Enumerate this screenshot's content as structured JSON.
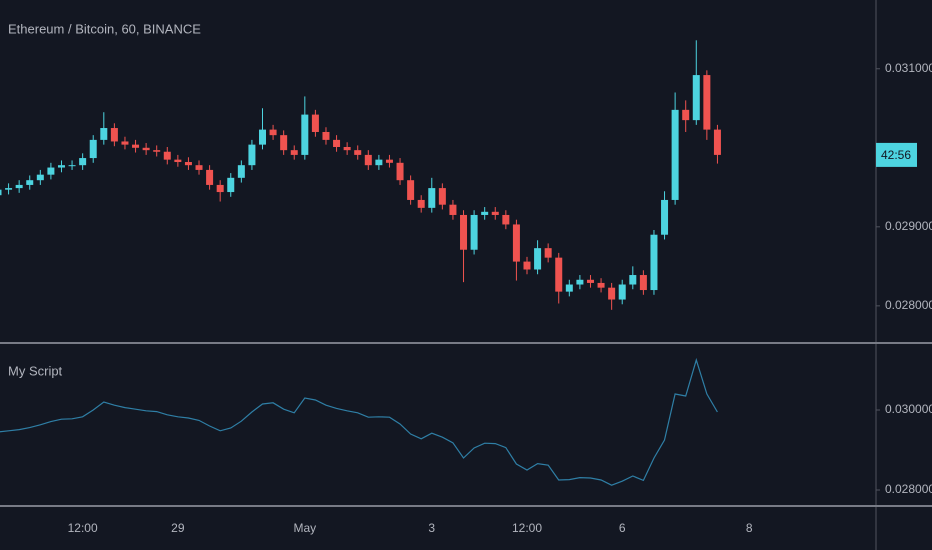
{
  "chart_data": [
    {
      "type": "candlestick",
      "title": "Ethereum / Bitcoin, 60, BINANCE",
      "price_label": "42:56",
      "up_color": "#4dd4e0",
      "down_color": "#ef5350",
      "grid": false,
      "categories": [
        null,
        null,
        null,
        null,
        null,
        null,
        null,
        null,
        "12:00",
        null,
        null,
        null,
        null,
        null,
        null,
        null,
        null,
        "29",
        null,
        null,
        null,
        null,
        null,
        null,
        null,
        null,
        null,
        null,
        null,
        "May",
        null,
        null,
        null,
        null,
        null,
        null,
        null,
        null,
        null,
        null,
        null,
        "3",
        null,
        null,
        null,
        null,
        null,
        null,
        null,
        null,
        "12:00",
        null,
        null,
        null,
        null,
        null,
        null,
        null,
        null,
        "6",
        null,
        null,
        null,
        null,
        null,
        null,
        null,
        null,
        null,
        null,
        null,
        "8",
        null,
        null,
        null,
        null,
        null,
        null,
        null,
        null,
        null,
        null,
        null
      ],
      "open": [
        0.0294,
        0.02947,
        0.02949,
        0.02953,
        0.02959,
        0.02966,
        0.02975,
        0.02978,
        0.02978,
        0.02987,
        0.0301,
        0.03025,
        0.03008,
        0.03004,
        0.03,
        0.02997,
        0.02995,
        0.02985,
        0.02982,
        0.02978,
        0.02972,
        0.02953,
        0.02944,
        0.02962,
        0.02978,
        0.03004,
        0.03023,
        0.03016,
        0.02997,
        0.02991,
        0.03042,
        0.0302,
        0.0301,
        0.03001,
        0.02997,
        0.02991,
        0.02978,
        0.02985,
        0.02981,
        0.02959,
        0.02934,
        0.02924,
        0.02949,
        0.02928,
        0.02915,
        0.02871,
        0.02915,
        0.02919,
        0.02915,
        0.02903,
        0.02856,
        0.02846,
        0.02873,
        0.02861,
        0.02818,
        0.02827,
        0.02833,
        0.02829,
        0.02823,
        0.02808,
        0.02827,
        0.02839,
        0.0282,
        0.0289,
        0.02934,
        0.03048,
        0.03035,
        0.03092,
        0.03023,
        null,
        null,
        null,
        null,
        null,
        null,
        null,
        null,
        null,
        null,
        null,
        null,
        null,
        null
      ],
      "high": [
        0.02953,
        0.02955,
        0.02959,
        0.02965,
        0.02972,
        0.02981,
        0.02984,
        0.02984,
        0.02993,
        0.03016,
        0.03045,
        0.03031,
        0.03014,
        0.0301,
        0.03006,
        0.03003,
        0.03001,
        0.02991,
        0.02988,
        0.02984,
        0.02978,
        0.02959,
        0.02968,
        0.02984,
        0.0301,
        0.0305,
        0.03029,
        0.03022,
        0.03003,
        0.03065,
        0.03048,
        0.03026,
        0.03016,
        0.03007,
        0.03003,
        0.02997,
        0.02991,
        0.02991,
        0.02987,
        0.02965,
        0.0294,
        0.02962,
        0.02955,
        0.02934,
        0.02921,
        0.02921,
        0.02925,
        0.02925,
        0.02921,
        0.02909,
        0.02862,
        0.02883,
        0.02879,
        0.02867,
        0.02833,
        0.02839,
        0.02839,
        0.02835,
        0.02829,
        0.02833,
        0.0285,
        0.02845,
        0.02896,
        0.02945,
        0.0307,
        0.0306,
        0.03136,
        0.03098,
        0.03029,
        null,
        null,
        null,
        null,
        null,
        null,
        null,
        null,
        null,
        null,
        null,
        null,
        null,
        null
      ],
      "low": [
        0.02934,
        0.02941,
        0.02943,
        0.02947,
        0.02953,
        0.0296,
        0.02969,
        0.02972,
        0.02972,
        0.02981,
        0.03004,
        0.03002,
        0.02998,
        0.02994,
        0.02991,
        0.02989,
        0.02979,
        0.02976,
        0.02972,
        0.02966,
        0.02947,
        0.02932,
        0.02938,
        0.02956,
        0.02972,
        0.02998,
        0.0301,
        0.02991,
        0.02985,
        0.02985,
        0.03014,
        0.03004,
        0.02995,
        0.02991,
        0.02985,
        0.02972,
        0.02972,
        0.02975,
        0.02953,
        0.02928,
        0.02918,
        0.02918,
        0.02922,
        0.02909,
        0.0283,
        0.02865,
        0.02909,
        0.02909,
        0.02897,
        0.02832,
        0.0284,
        0.0284,
        0.02855,
        0.02803,
        0.02812,
        0.02821,
        0.02823,
        0.02817,
        0.02795,
        0.02802,
        0.02821,
        0.02814,
        0.02814,
        0.02884,
        0.02928,
        0.0302,
        0.03029,
        0.0301,
        0.0298,
        null,
        null,
        null,
        null,
        null,
        null,
        null,
        null,
        null,
        null,
        null,
        null,
        null,
        null
      ],
      "close": [
        0.02947,
        0.02949,
        0.02953,
        0.02959,
        0.02966,
        0.02975,
        0.02978,
        0.02978,
        0.02987,
        0.0301,
        0.03025,
        0.03008,
        0.03004,
        0.03,
        0.02997,
        0.02995,
        0.02985,
        0.02982,
        0.02978,
        0.02972,
        0.02953,
        0.02944,
        0.02962,
        0.02978,
        0.03004,
        0.03023,
        0.03016,
        0.02997,
        0.02991,
        0.03042,
        0.0302,
        0.0301,
        0.03001,
        0.02997,
        0.02991,
        0.02978,
        0.02985,
        0.02981,
        0.02959,
        0.02934,
        0.02924,
        0.02949,
        0.02928,
        0.02915,
        0.02871,
        0.02915,
        0.02919,
        0.02915,
        0.02903,
        0.02856,
        0.02846,
        0.02873,
        0.02861,
        0.02818,
        0.02827,
        0.02833,
        0.02829,
        0.02823,
        0.02808,
        0.02827,
        0.02839,
        0.0282,
        0.0289,
        0.02934,
        0.03048,
        0.03035,
        0.03092,
        0.03023,
        0.02991,
        null,
        null,
        null,
        null,
        null,
        null,
        null,
        null,
        null,
        null,
        null,
        null,
        null,
        null
      ],
      "ylim": [
        0.02753,
        0.03187
      ],
      "yticks": [
        {
          "value": 0.028,
          "label": "0.028000"
        },
        {
          "value": 0.029,
          "label": "0.029000"
        },
        {
          "value": 0.031,
          "label": "0.031000"
        }
      ]
    },
    {
      "type": "line",
      "title": "My Script",
      "color": "#2f7fa6",
      "grid": false,
      "values": [
        0.02945,
        0.02948,
        0.02951,
        0.02956,
        0.02963,
        0.02971,
        0.02977,
        0.02978,
        0.02983,
        0.03,
        0.0302,
        0.03012,
        0.03006,
        0.03002,
        0.02998,
        0.02996,
        0.02988,
        0.02983,
        0.0298,
        0.02974,
        0.0296,
        0.02948,
        0.02955,
        0.02972,
        0.02995,
        0.03015,
        0.03018,
        0.03002,
        0.02993,
        0.0303,
        0.03025,
        0.03012,
        0.03004,
        0.02998,
        0.02993,
        0.02982,
        0.02983,
        0.02982,
        0.02965,
        0.0294,
        0.02928,
        0.02942,
        0.02932,
        0.02918,
        0.0288,
        0.02905,
        0.02917,
        0.02916,
        0.02906,
        0.02865,
        0.0285,
        0.02866,
        0.02862,
        0.02825,
        0.02826,
        0.02831,
        0.0283,
        0.02825,
        0.02812,
        0.02822,
        0.02835,
        0.02824,
        0.0288,
        0.02925,
        0.0304,
        0.03035,
        0.03125,
        0.0304,
        0.02995,
        null,
        null,
        null,
        null,
        null,
        null,
        null,
        null,
        null,
        null,
        null,
        null,
        null,
        null
      ],
      "ylim": [
        0.027625,
        0.031625
      ],
      "yticks": [
        {
          "value": 0.028,
          "label": "0.028000"
        },
        {
          "value": 0.03,
          "label": "0.030000"
        }
      ]
    }
  ]
}
